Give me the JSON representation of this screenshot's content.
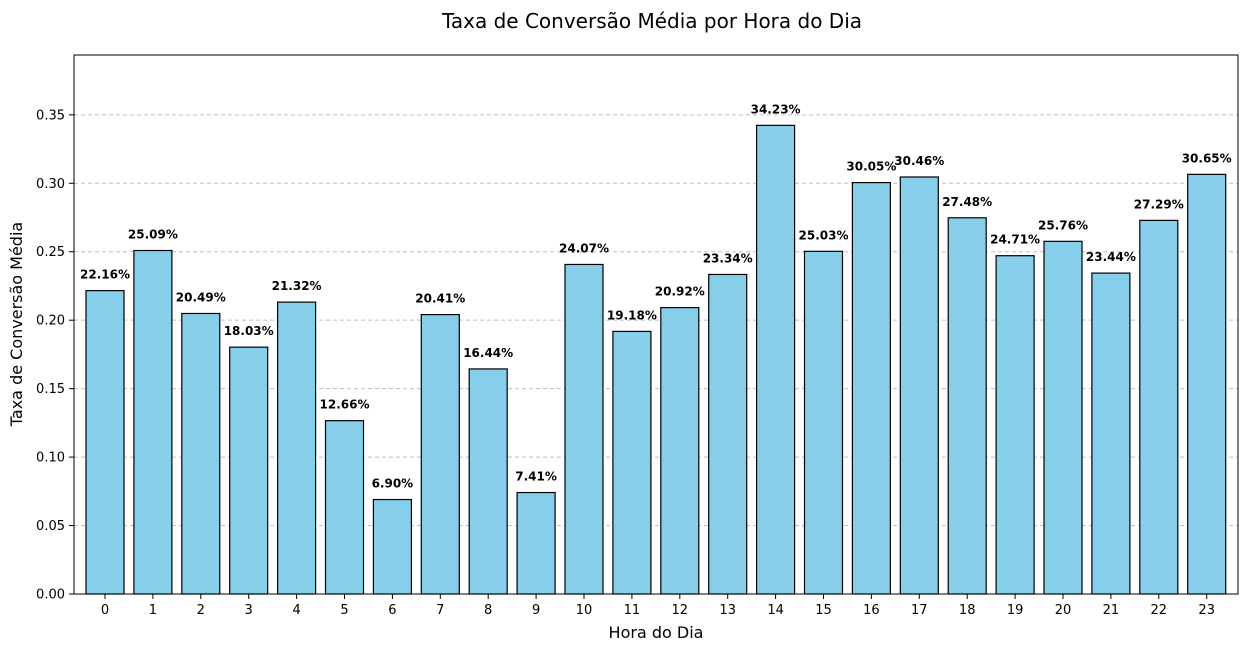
{
  "chart_data": {
    "type": "bar",
    "title": "Taxa de Conversão Média por Hora do Dia",
    "xlabel": "Hora do Dia",
    "ylabel": "Taxa de Conversão Média",
    "categories": [
      "0",
      "1",
      "2",
      "3",
      "4",
      "5",
      "6",
      "7",
      "8",
      "9",
      "10",
      "11",
      "12",
      "13",
      "14",
      "15",
      "16",
      "17",
      "18",
      "19",
      "20",
      "21",
      "22",
      "23"
    ],
    "values": [
      0.2216,
      0.2509,
      0.2049,
      0.1803,
      0.2132,
      0.1266,
      0.069,
      0.2041,
      0.1644,
      0.0741,
      0.2407,
      0.1918,
      0.2092,
      0.2334,
      0.3423,
      0.2503,
      0.3005,
      0.3046,
      0.2748,
      0.2471,
      0.2576,
      0.2344,
      0.2729,
      0.3065
    ],
    "data_labels": [
      "22.16%",
      "25.09%",
      "20.49%",
      "18.03%",
      "21.32%",
      "12.66%",
      "6.90%",
      "20.41%",
      "16.44%",
      "7.41%",
      "24.07%",
      "19.18%",
      "20.92%",
      "23.34%",
      "34.23%",
      "25.03%",
      "30.05%",
      "30.46%",
      "27.48%",
      "24.71%",
      "25.76%",
      "23.44%",
      "27.29%",
      "30.65%"
    ],
    "yticks": [
      "0.00",
      "0.05",
      "0.10",
      "0.15",
      "0.20",
      "0.25",
      "0.30",
      "0.35"
    ],
    "ylim": [
      0,
      0.3937
    ],
    "grid": "y-dashed",
    "bar_color": "#87CEEB",
    "edge_color": "#000000"
  }
}
